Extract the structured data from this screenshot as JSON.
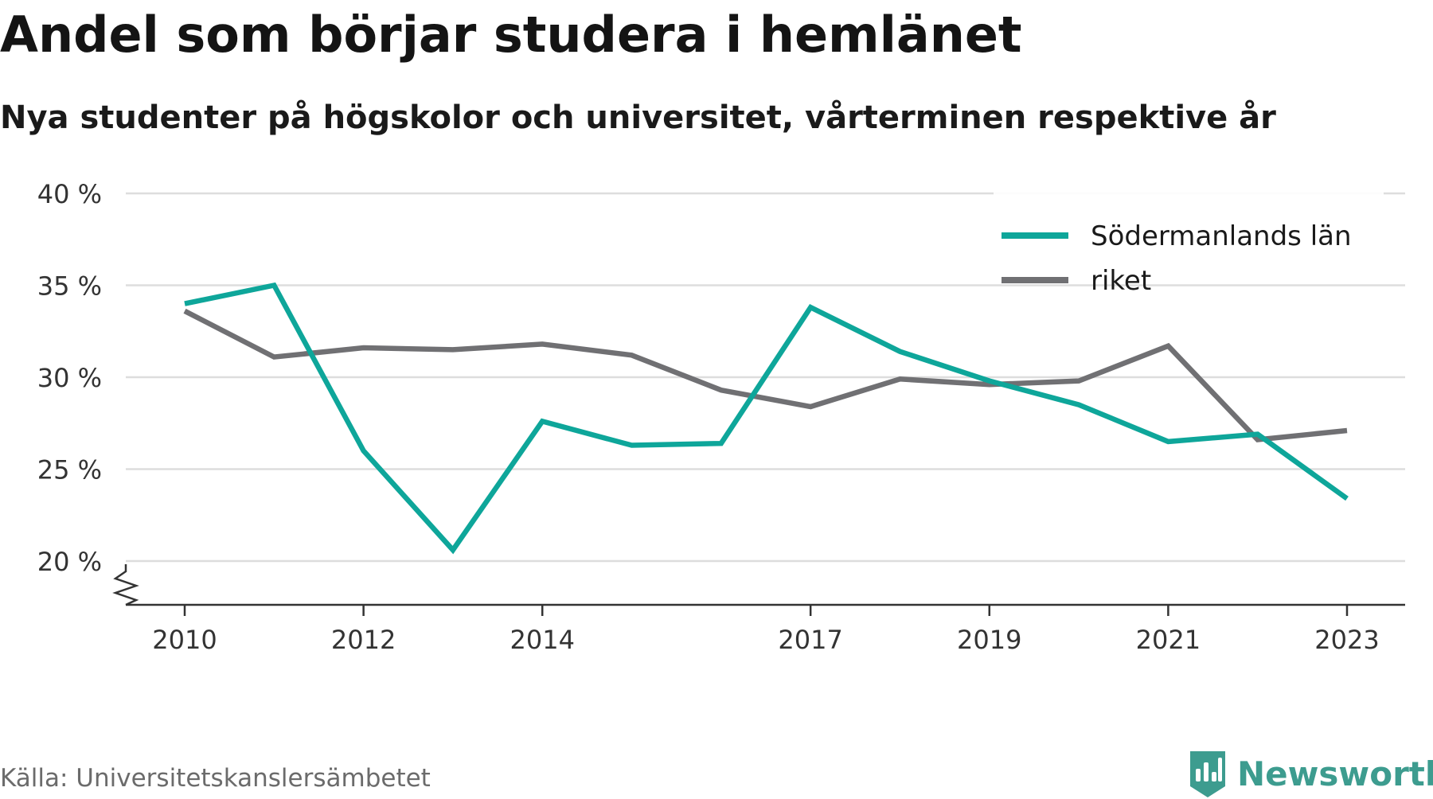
{
  "title": "Andel som börjar studera i hemlänet",
  "subtitle": "Nya studenter på högskolor och universitet, vårterminen respektive år",
  "source": "Källa: Universitetskanslersämbetet",
  "brand": "Newsworthy",
  "colors": {
    "Södermanlands län": "#0ea69a",
    "riket": "#707073",
    "grid": "#dddddd",
    "axis": "#333333",
    "brand": "#3d9c8f"
  },
  "chart_data": {
    "type": "line",
    "x": [
      2010,
      2011,
      2012,
      2013,
      2014,
      2015,
      2016,
      2017,
      2018,
      2019,
      2020,
      2021,
      2022,
      2023
    ],
    "series": [
      {
        "name": "Södermanlands län",
        "values": [
          34.0,
          35.0,
          26.0,
          20.6,
          27.6,
          26.3,
          26.4,
          33.8,
          31.4,
          29.8,
          28.5,
          26.5,
          26.9,
          23.4
        ]
      },
      {
        "name": "riket",
        "values": [
          33.6,
          31.1,
          31.6,
          31.5,
          31.8,
          31.2,
          29.3,
          28.4,
          29.9,
          29.6,
          29.8,
          31.7,
          26.6,
          27.1
        ]
      }
    ],
    "x_ticks": [
      {
        "value": 2010,
        "label": "2010"
      },
      {
        "value": 2012,
        "label": "2012"
      },
      {
        "value": 2014,
        "label": "2014"
      },
      {
        "value": 2017,
        "label": "2017"
      },
      {
        "value": 2019,
        "label": "2019"
      },
      {
        "value": 2021,
        "label": "2021"
      },
      {
        "value": 2023,
        "label": "2023"
      }
    ],
    "y_ticks": [
      {
        "value": 20,
        "label": "20 %"
      },
      {
        "value": 25,
        "label": "25 %"
      },
      {
        "value": 30,
        "label": "30 %"
      },
      {
        "value": 35,
        "label": "35 %"
      },
      {
        "value": 40,
        "label": "40 %"
      }
    ],
    "xlabel": "",
    "ylabel": "",
    "ylim": [
      20,
      40
    ],
    "y_axis_break": true,
    "grid": true,
    "legend_position": "top-right"
  }
}
